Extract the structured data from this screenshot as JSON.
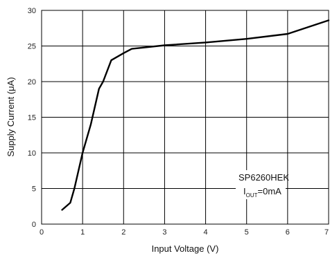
{
  "chart_data": {
    "type": "line",
    "title": "",
    "xlabel": "Input Voltage (V)",
    "ylabel": "Supply Current (μA)",
    "xlim": [
      0,
      7
    ],
    "ylim": [
      0,
      30
    ],
    "xticks": [
      "0",
      "1",
      "2",
      "3",
      "4",
      "5",
      "6",
      "7"
    ],
    "yticks": [
      "0",
      "5",
      "10",
      "15",
      "20",
      "25",
      "30"
    ],
    "grid": true,
    "annotation": {
      "line1": "SP6260HEK",
      "line2_prefix": "I",
      "line2_sub": "OUT",
      "line2_suffix": "=0mA"
    },
    "series": [
      {
        "x": [
          0.5,
          0.7,
          0.8,
          1.0,
          1.2,
          1.4,
          1.5,
          1.7,
          2.0,
          2.2,
          3.0,
          4.0,
          5.0,
          6.0,
          7.0
        ],
        "y": [
          2.0,
          3.0,
          5.0,
          10.0,
          14.0,
          19.0,
          20.0,
          23.0,
          24.0,
          24.6,
          25.1,
          25.5,
          26.0,
          26.7,
          28.6
        ]
      }
    ],
    "colors": {
      "line": "#000000",
      "grid": "#000000"
    }
  }
}
